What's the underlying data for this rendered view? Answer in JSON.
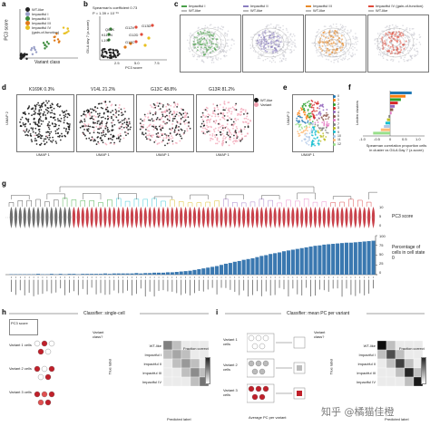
{
  "panels": {
    "a": {
      "label": "a",
      "ylabel": "PC3 score",
      "xlabel": "Variant class",
      "legend": [
        "WT-like",
        "Impactful I",
        "Impactful II",
        "Impactful III",
        "Impactful IV",
        "(gain-of-function)"
      ],
      "colors": [
        "#222222",
        "#9aa0c8",
        "#3a8a3a",
        "#e07a18",
        "#e8c020"
      ]
    },
    "b": {
      "label": "b",
      "stat1": "Spearman's coefficient 0.73",
      "stat2": "P = 1.39 × 10⁻¹⁵",
      "ylabel": "GILA day 7 (z-score)",
      "xlabel": "PC3 score",
      "ticks_x": [
        "2.5",
        "5.0",
        "7.5"
      ],
      "points": [
        "Q61K",
        "K117N",
        "L19F",
        "G12V",
        "G12D",
        "G12C",
        "G13D"
      ]
    },
    "c": {
      "label": "c",
      "groups": [
        {
          "a": "Impactful I",
          "b": "WT-like",
          "color": "#4aa04a"
        },
        {
          "a": "Impactful II",
          "b": "WT-like",
          "color": "#8a7ec0"
        },
        {
          "a": "Impactful III",
          "b": "WT-like",
          "color": "#e88a2a"
        },
        {
          "a": "Impactful IV (gain-of-function)",
          "b": "WT-like",
          "color": "#e04a3a"
        }
      ]
    },
    "d": {
      "label": "d",
      "ylabel": "UMAP 2",
      "xlabel": "UMAP 1",
      "plots": [
        {
          "title": "K169K 0.3%"
        },
        {
          "title": "V14L 21.2%"
        },
        {
          "title": "G13C 48.8%"
        },
        {
          "title": "G13R 81.2%"
        }
      ],
      "legend": [
        "WT-like",
        "Variant"
      ]
    },
    "e": {
      "label": "e",
      "ylabel": "UMAP 2",
      "xlabel": "UMAP 1",
      "clusters": [
        "0",
        "1",
        "2",
        "3",
        "4",
        "5",
        "6",
        "7",
        "8",
        "9",
        "10",
        "11",
        "12"
      ]
    },
    "f": {
      "label": "f",
      "ylabel": "Leiden clusters",
      "xlabel": "Spearman correlation proportion cells in cluster vs GILA Day 7 (z-score)",
      "ticks": [
        "-1.0",
        "-0.5",
        "0",
        "0.5",
        "1.0"
      ]
    },
    "g": {
      "label": "g",
      "pc3_label": "PC3 score",
      "bar_label": "Percentage of cells in cell state 0",
      "y_ticks_top": [
        "10",
        "5",
        "0"
      ],
      "y_ticks_bottom": [
        "100",
        "75",
        "50",
        "25",
        "0"
      ]
    },
    "h": {
      "label": "h",
      "title": "Classifier: single-cell",
      "inset": "PC3 score",
      "rows": [
        "Variant 1 cells",
        "Variant 2 cells",
        "Variant 3 cells"
      ],
      "question": "Variant class?",
      "classes": [
        "WT-like",
        "Impactful I",
        "Impactful II",
        "Impactful III",
        "Impactful IV"
      ],
      "ylabel": "True label",
      "xlabel": "Predicted label",
      "scale_label": "Fraction correct",
      "scale_ticks": [
        "1",
        "0"
      ]
    },
    "i": {
      "label": "i",
      "title": "Classifier: mean PC per variant",
      "rows": [
        "Variant 1 cells",
        "Variant 2 cells",
        "Variant 3 cells"
      ],
      "question": "Variant class?",
      "mid": "Average PC per variant",
      "classes": [
        "WT-like",
        "Impactful I",
        "Impactful II",
        "Impactful III",
        "Impactful IV"
      ],
      "ylabel": "True label",
      "xlabel": "Predicted label",
      "scale_label": "Fraction correct",
      "scale_ticks": [
        "1",
        "0"
      ],
      "watermark": "知乎 @橘猫佳橙"
    }
  },
  "chart_data": [
    {
      "type": "bar",
      "panel": "g",
      "ylabel": "Percentage of cells in cell state 0",
      "ylim": [
        0,
        100
      ],
      "values": [
        1,
        1,
        1,
        1,
        1,
        1,
        2,
        1,
        1,
        2,
        1,
        2,
        1,
        2,
        2,
        1,
        2,
        2,
        2,
        2,
        2,
        3,
        2,
        3,
        3,
        3,
        3,
        3,
        4,
        3,
        4,
        4,
        5,
        5,
        5,
        6,
        6,
        7,
        8,
        9,
        10,
        12,
        14,
        16,
        18,
        20,
        22,
        25,
        28,
        30,
        33,
        35,
        38,
        40,
        42,
        45,
        48,
        50,
        53,
        55,
        57,
        60,
        62,
        64,
        66,
        68,
        70,
        72,
        74,
        75,
        77,
        78,
        79,
        80,
        81,
        82,
        82,
        83,
        84,
        85,
        86,
        87
      ]
    },
    {
      "type": "bar",
      "panel": "f",
      "xlabel": "Spearman correlation proportion cells in cluster vs GILA Day 7 (z-score)",
      "xlim": [
        -1,
        1
      ],
      "values": [
        0.7,
        0.5,
        0.35,
        0.25,
        0.15,
        0.1,
        0.05,
        -0.05,
        -0.1,
        -0.15,
        -0.2,
        -0.3,
        -0.55
      ]
    }
  ]
}
